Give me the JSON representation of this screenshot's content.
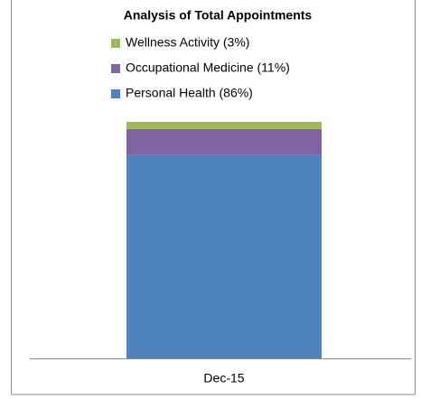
{
  "chart_data": {
    "type": "stacked_bar",
    "title": "Analysis of Total Appointments",
    "categories": [
      "Dec-15"
    ],
    "series": [
      {
        "name": "Personal Health (86%)",
        "color": "#4f81bd",
        "values": [
          86
        ]
      },
      {
        "name": "Occupational Medicine (11%)",
        "color": "#8064a2",
        "values": [
          11
        ]
      },
      {
        "name": "Wellness Activity (3%)",
        "color": "#9bbb59",
        "values": [
          3
        ]
      }
    ],
    "ylim": [
      0,
      100
    ]
  }
}
